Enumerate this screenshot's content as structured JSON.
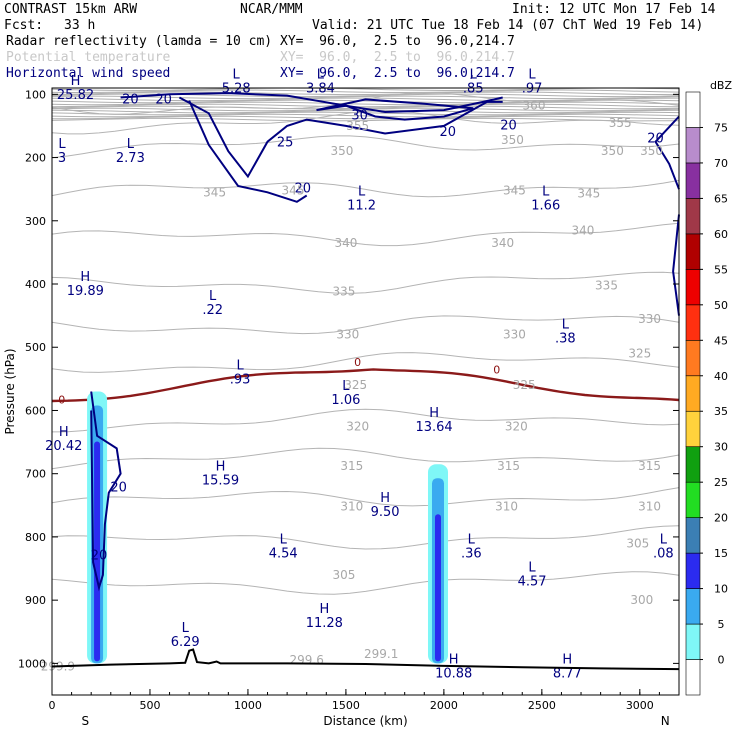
{
  "header": {
    "model": "CONTRAST 15km ARW",
    "org": "NCAR/MMM",
    "init": "Init: 12 UTC Mon 17 Feb 14",
    "fcst_label": "Fcst:",
    "fcst_value": "33 h",
    "valid": "Valid: 21 UTC Tue 18 Feb 14 (07 ChT Wed 19 Feb 14)",
    "fields": [
      {
        "name": "Radar reflectivity (lamda = 10 cm)",
        "xy": "XY=  96.0,  2.5 to  96.0,214.7",
        "color": "#000000"
      },
      {
        "name": "Potential temperature",
        "xy": "XY=  96.0,  2.5 to  96.0,214.7",
        "color": "#c8c8c8"
      },
      {
        "name": "Horizontal wind speed",
        "xy": "XY=  96.0,  2.5 to  96.0,214.7",
        "color": "#000080"
      }
    ]
  },
  "chart_data": {
    "type": "cross-section",
    "title": "Vertical cross section",
    "xlabel": "Distance (km)",
    "ylabel": "Pressure (hPa)",
    "xlim": [
      0,
      3200
    ],
    "ylim": [
      1050,
      90
    ],
    "xticks": [
      0,
      500,
      1000,
      1500,
      2000,
      2500,
      3000
    ],
    "yticks": [
      100,
      200,
      300,
      400,
      500,
      600,
      700,
      800,
      900,
      1000
    ],
    "x_end_labels": {
      "left": "S",
      "right": "N"
    },
    "colorbar": {
      "unit": "dBZ",
      "levels": [
        0,
        5,
        10,
        15,
        20,
        25,
        30,
        35,
        40,
        45,
        50,
        55,
        60,
        65,
        70,
        75
      ],
      "colors": [
        "#ffffff",
        "#7ff7f7",
        "#3aaaf0",
        "#2b2bf0",
        "#3b7fb4",
        "#22dd22",
        "#10a010",
        "#ffd23c",
        "#ffaa22",
        "#ff7a20",
        "#ff3010",
        "#ee0000",
        "#b00000",
        "#a03848",
        "#8830a0",
        "#b88ccc",
        "#ffffff"
      ]
    },
    "reflectivity_columns": [
      {
        "x_km": 230,
        "top_hPa": 570,
        "bottom_hPa": 1000,
        "max_dbz": 20
      },
      {
        "x_km": 1970,
        "top_hPa": 685,
        "bottom_hPa": 1000,
        "max_dbz": 20
      }
    ],
    "theta_contours_K": [
      300,
      305,
      310,
      315,
      320,
      325,
      330,
      335,
      340,
      345,
      350,
      355,
      360
    ],
    "theta_labels": [
      {
        "text": "299.9",
        "x": 30,
        "p": 1005
      },
      {
        "text": "299.6",
        "x": 1300,
        "p": 995
      },
      {
        "text": "299.1",
        "x": 1680,
        "p": 985
      },
      {
        "text": "300",
        "x": 3010,
        "p": 900
      },
      {
        "text": "305",
        "x": 1490,
        "p": 860
      },
      {
        "text": "305",
        "x": 2990,
        "p": 810
      },
      {
        "text": "310",
        "x": 1530,
        "p": 752
      },
      {
        "text": "310",
        "x": 2320,
        "p": 752
      },
      {
        "text": "310",
        "x": 3050,
        "p": 752
      },
      {
        "text": "315",
        "x": 1530,
        "p": 688
      },
      {
        "text": "315",
        "x": 2330,
        "p": 688
      },
      {
        "text": "315",
        "x": 3050,
        "p": 688
      },
      {
        "text": "320",
        "x": 1560,
        "p": 625
      },
      {
        "text": "320",
        "x": 2370,
        "p": 625
      },
      {
        "text": "325",
        "x": 1550,
        "p": 560
      },
      {
        "text": "325",
        "x": 2410,
        "p": 560
      },
      {
        "text": "325",
        "x": 3000,
        "p": 510
      },
      {
        "text": "330",
        "x": 1510,
        "p": 480
      },
      {
        "text": "330",
        "x": 2360,
        "p": 480
      },
      {
        "text": "330",
        "x": 3050,
        "p": 455
      },
      {
        "text": "335",
        "x": 1490,
        "p": 412
      },
      {
        "text": "335",
        "x": 2830,
        "p": 402
      },
      {
        "text": "340",
        "x": 1500,
        "p": 335
      },
      {
        "text": "340",
        "x": 2300,
        "p": 335
      },
      {
        "text": "340",
        "x": 2710,
        "p": 315
      },
      {
        "text": "345",
        "x": 830,
        "p": 255
      },
      {
        "text": "345",
        "x": 1230,
        "p": 252
      },
      {
        "text": "345",
        "x": 2360,
        "p": 252
      },
      {
        "text": "345",
        "x": 2740,
        "p": 257
      },
      {
        "text": "350",
        "x": 1480,
        "p": 190
      },
      {
        "text": "350",
        "x": 2350,
        "p": 172
      },
      {
        "text": "350",
        "x": 2860,
        "p": 190
      },
      {
        "text": "350",
        "x": 3060,
        "p": 190
      },
      {
        "text": "355",
        "x": 1560,
        "p": 150
      },
      {
        "text": "355",
        "x": 2900,
        "p": 145
      },
      {
        "text": "360",
        "x": 2460,
        "p": 118
      }
    ],
    "wind_speed_labels": [
      {
        "text": "20",
        "x": 400,
        "p": 107
      },
      {
        "text": "20",
        "x": 570,
        "p": 107
      },
      {
        "text": "30",
        "x": 1570,
        "p": 132
      },
      {
        "text": "25",
        "x": 1190,
        "p": 175
      },
      {
        "text": "20",
        "x": 1280,
        "p": 247
      },
      {
        "text": "20",
        "x": 2020,
        "p": 158
      },
      {
        "text": "20",
        "x": 2330,
        "p": 148
      },
      {
        "text": "20",
        "x": 3080,
        "p": 168
      },
      {
        "text": "20",
        "x": 340,
        "p": 720
      },
      {
        "text": "20",
        "x": 240,
        "p": 828
      }
    ],
    "zero_line_labels": [
      {
        "text": "0",
        "x": 50,
        "p": 583
      },
      {
        "text": "0",
        "x": 1560,
        "p": 523
      },
      {
        "text": "0",
        "x": 2270,
        "p": 535
      }
    ],
    "extrema": [
      {
        "kind": "H",
        "value": "25.82",
        "x": 120,
        "p": 85
      },
      {
        "kind": "L",
        "value": "5.28",
        "x": 940,
        "p": 75
      },
      {
        "kind": "L",
        "value": "3.84",
        "x": 1370,
        "p": 75
      },
      {
        "kind": "L",
        "value": ".85",
        "x": 2150,
        "p": 75
      },
      {
        "kind": "L",
        "value": ".97",
        "x": 2450,
        "p": 75
      },
      {
        "kind": "L",
        "value": "3",
        "x": 0,
        "p": 185
      },
      {
        "kind": "L",
        "value": "2.73",
        "x": 400,
        "p": 185
      },
      {
        "kind": "L",
        "value": "11.2",
        "x": 1580,
        "p": 260
      },
      {
        "kind": "L",
        "value": "1.66",
        "x": 2520,
        "p": 260
      },
      {
        "kind": "H",
        "value": "19.89",
        "x": 170,
        "p": 395
      },
      {
        "kind": "L",
        "value": ".22",
        "x": 820,
        "p": 425
      },
      {
        "kind": "L",
        "value": ".38",
        "x": 2620,
        "p": 470
      },
      {
        "kind": "L",
        "value": ".93",
        "x": 960,
        "p": 535
      },
      {
        "kind": "L",
        "value": "1.06",
        "x": 1500,
        "p": 568
      },
      {
        "kind": "H",
        "value": "13.64",
        "x": 1950,
        "p": 610
      },
      {
        "kind": "H",
        "value": "20.42",
        "x": 60,
        "p": 640
      },
      {
        "kind": "H",
        "value": "15.59",
        "x": 860,
        "p": 695
      },
      {
        "kind": "H",
        "value": "9.50",
        "x": 1700,
        "p": 745
      },
      {
        "kind": "L",
        "value": "4.54",
        "x": 1180,
        "p": 810
      },
      {
        "kind": "L",
        "value": ".36",
        "x": 2140,
        "p": 810
      },
      {
        "kind": "L",
        "value": ".08",
        "x": 3120,
        "p": 810
      },
      {
        "kind": "L",
        "value": "4.57",
        "x": 2450,
        "p": 855
      },
      {
        "kind": "H",
        "value": "11.28",
        "x": 1390,
        "p": 920
      },
      {
        "kind": "L",
        "value": "6.29",
        "x": 680,
        "p": 950
      },
      {
        "kind": "H",
        "value": "10.88",
        "x": 2050,
        "p": 1000
      },
      {
        "kind": "H",
        "value": "8.77",
        "x": 2630,
        "p": 1000
      }
    ],
    "terrain_hPa": [
      [
        0,
        1005
      ],
      [
        300,
        1002
      ],
      [
        600,
        1000
      ],
      [
        680,
        999
      ],
      [
        700,
        980
      ],
      [
        720,
        978
      ],
      [
        740,
        998
      ],
      [
        800,
        1000
      ],
      [
        840,
        997
      ],
      [
        860,
        1000
      ],
      [
        1200,
        1000
      ],
      [
        1600,
        1001
      ],
      [
        2000,
        1004
      ],
      [
        2400,
        1006
      ],
      [
        2800,
        1008
      ],
      [
        3200,
        1009
      ]
    ]
  }
}
